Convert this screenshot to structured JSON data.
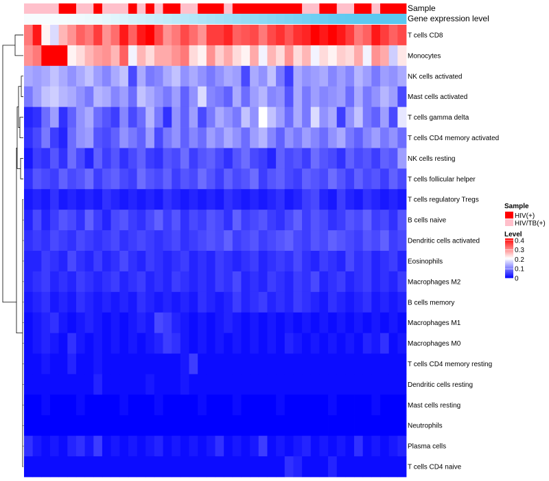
{
  "chart_data": {
    "type": "heatmap",
    "annotation_labels": {
      "sample": "Sample",
      "gene_expression": "Gene expression level"
    },
    "rows": [
      "T cells CD8",
      "Monocytes",
      "NK cells activated",
      "Mast cells activated",
      "T cells gamma delta",
      "T cells CD4 memory activated",
      "NK cells resting",
      "T cells follicular helper",
      "T cells regulatory  Tregs",
      "B cells naive",
      "Dendritic cells activated",
      "Eosinophils",
      "Macrophages M2",
      "B cells memory",
      "Macrophages M1",
      "Macrophages M0",
      "T cells CD4 memory resting",
      "Dendritic cells resting",
      "Mast cells resting",
      "Neutrophils",
      "Plasma cells",
      "T cells CD4 naive"
    ],
    "n_samples": 44,
    "sample_groups": [
      "HIV/TB(+)",
      "HIV/TB(+)",
      "HIV/TB(+)",
      "HIV/TB(+)",
      "HIV(+)",
      "HIV(+)",
      "HIV/TB(+)",
      "HIV/TB(+)",
      "HIV(+)",
      "HIV/TB(+)",
      "HIV/TB(+)",
      "HIV/TB(+)",
      "HIV(+)",
      "HIV/TB(+)",
      "HIV(+)",
      "HIV/TB(+)",
      "HIV(+)",
      "HIV(+)",
      "HIV/TB(+)",
      "HIV/TB(+)",
      "HIV(+)",
      "HIV(+)",
      "HIV(+)",
      "HIV/TB(+)",
      "HIV(+)",
      "HIV(+)",
      "HIV(+)",
      "HIV(+)",
      "HIV(+)",
      "HIV(+)",
      "HIV(+)",
      "HIV(+)",
      "HIV/TB(+)",
      "HIV/TB(+)",
      "HIV(+)",
      "HIV(+)",
      "HIV/TB(+)",
      "HIV/TB(+)",
      "HIV(+)",
      "HIV(+)",
      "HIV/TB(+)",
      "HIV(+)",
      "HIV(+)",
      "HIV(+)"
    ],
    "gene_expression_level": [
      0.05,
      0.05,
      0.05,
      0.05,
      0.06,
      0.07,
      0.09,
      0.11,
      0.13,
      0.16,
      0.19,
      0.22,
      0.25,
      0.28,
      0.31,
      0.34,
      0.37,
      0.4,
      0.43,
      0.46,
      0.49,
      0.52,
      0.55,
      0.58,
      0.61,
      0.64,
      0.67,
      0.7,
      0.73,
      0.76,
      0.79,
      0.82,
      0.85,
      0.88,
      0.91,
      0.94,
      0.96,
      0.97,
      0.98,
      0.99,
      1.0,
      1.0,
      1.0,
      1.0
    ],
    "values": [
      [
        0.32,
        0.4,
        0.22,
        0.18,
        0.27,
        0.3,
        0.34,
        0.32,
        0.37,
        0.3,
        0.33,
        0.4,
        0.34,
        0.4,
        0.42,
        0.36,
        0.3,
        0.32,
        0.36,
        0.33,
        0.3,
        0.37,
        0.37,
        0.39,
        0.34,
        0.35,
        0.36,
        0.32,
        0.36,
        0.38,
        0.35,
        0.38,
        0.39,
        0.42,
        0.4,
        0.42,
        0.4,
        0.37,
        0.32,
        0.34,
        0.4,
        0.37,
        0.34,
        0.36
      ],
      [
        0.3,
        0.32,
        0.42,
        0.42,
        0.42,
        0.22,
        0.24,
        0.27,
        0.29,
        0.3,
        0.27,
        0.34,
        0.2,
        0.27,
        0.24,
        0.28,
        0.28,
        0.3,
        0.32,
        0.24,
        0.22,
        0.3,
        0.25,
        0.28,
        0.24,
        0.22,
        0.28,
        0.2,
        0.27,
        0.24,
        0.3,
        0.24,
        0.27,
        0.2,
        0.24,
        0.22,
        0.25,
        0.24,
        0.28,
        0.2,
        0.3,
        0.28,
        0.17,
        0.23
      ],
      [
        0.14,
        0.13,
        0.14,
        0.16,
        0.14,
        0.12,
        0.14,
        0.16,
        0.13,
        0.11,
        0.14,
        0.16,
        0.06,
        0.14,
        0.1,
        0.11,
        0.14,
        0.16,
        0.12,
        0.14,
        0.12,
        0.1,
        0.12,
        0.14,
        0.13,
        0.06,
        0.14,
        0.12,
        0.16,
        0.1,
        0.05,
        0.14,
        0.12,
        0.13,
        0.14,
        0.11,
        0.13,
        0.11,
        0.15,
        0.13,
        0.1,
        0.13,
        0.12,
        0.14
      ],
      [
        0.1,
        0.13,
        0.16,
        0.17,
        0.15,
        0.14,
        0.12,
        0.1,
        0.15,
        0.14,
        0.11,
        0.13,
        0.09,
        0.16,
        0.14,
        0.12,
        0.1,
        0.13,
        0.08,
        0.12,
        0.18,
        0.11,
        0.1,
        0.08,
        0.14,
        0.09,
        0.13,
        0.15,
        0.11,
        0.12,
        0.07,
        0.14,
        0.1,
        0.13,
        0.11,
        0.12,
        0.13,
        0.09,
        0.14,
        0.1,
        0.12,
        0.15,
        0.13,
        0.06
      ],
      [
        0.03,
        0.04,
        0.09,
        0.13,
        0.04,
        0.08,
        0.12,
        0.14,
        0.09,
        0.07,
        0.05,
        0.11,
        0.06,
        0.09,
        0.15,
        0.1,
        0.04,
        0.12,
        0.08,
        0.13,
        0.06,
        0.1,
        0.14,
        0.12,
        0.1,
        0.16,
        0.12,
        0.21,
        0.16,
        0.13,
        0.09,
        0.14,
        0.1,
        0.18,
        0.12,
        0.14,
        0.05,
        0.12,
        0.16,
        0.1,
        0.08,
        0.13,
        0.06,
        0.19
      ],
      [
        0.04,
        0.06,
        0.1,
        0.05,
        0.03,
        0.09,
        0.12,
        0.13,
        0.07,
        0.06,
        0.08,
        0.12,
        0.1,
        0.08,
        0.13,
        0.06,
        0.1,
        0.12,
        0.08,
        0.11,
        0.09,
        0.13,
        0.11,
        0.14,
        0.12,
        0.09,
        0.13,
        0.15,
        0.11,
        0.08,
        0.12,
        0.1,
        0.13,
        0.11,
        0.09,
        0.12,
        0.14,
        0.1,
        0.08,
        0.11,
        0.13,
        0.1,
        0.12,
        0.09
      ],
      [
        0.02,
        0.05,
        0.04,
        0.07,
        0.04,
        0.09,
        0.06,
        0.03,
        0.08,
        0.05,
        0.07,
        0.04,
        0.06,
        0.08,
        0.05,
        0.04,
        0.07,
        0.06,
        0.09,
        0.05,
        0.07,
        0.08,
        0.06,
        0.04,
        0.07,
        0.09,
        0.06,
        0.05,
        0.03,
        0.08,
        0.06,
        0.07,
        0.05,
        0.09,
        0.07,
        0.06,
        0.04,
        0.08,
        0.06,
        0.07,
        0.05,
        0.08,
        0.07,
        0.13
      ],
      [
        0.04,
        0.07,
        0.06,
        0.05,
        0.08,
        0.06,
        0.07,
        0.09,
        0.05,
        0.07,
        0.08,
        0.06,
        0.05,
        0.09,
        0.07,
        0.06,
        0.08,
        0.05,
        0.07,
        0.06,
        0.09,
        0.07,
        0.05,
        0.08,
        0.06,
        0.07,
        0.09,
        0.05,
        0.07,
        0.08,
        0.06,
        0.05,
        0.08,
        0.07,
        0.06,
        0.09,
        0.07,
        0.05,
        0.08,
        0.06,
        0.07,
        0.05,
        0.08,
        0.06
      ],
      [
        0.02,
        0.03,
        0.02,
        0.04,
        0.02,
        0.03,
        0.02,
        0.03,
        0.02,
        0.04,
        0.03,
        0.02,
        0.03,
        0.02,
        0.03,
        0.02,
        0.04,
        0.03,
        0.02,
        0.03,
        0.02,
        0.03,
        0.02,
        0.04,
        0.03,
        0.02,
        0.03,
        0.02,
        0.03,
        0.04,
        0.02,
        0.03,
        0.05,
        0.06,
        0.03,
        0.02,
        0.05,
        0.03,
        0.02,
        0.04,
        0.03,
        0.02,
        0.03,
        0.02
      ],
      [
        0.03,
        0.06,
        0.03,
        0.05,
        0.07,
        0.06,
        0.04,
        0.08,
        0.05,
        0.03,
        0.06,
        0.07,
        0.05,
        0.04,
        0.06,
        0.08,
        0.05,
        0.07,
        0.04,
        0.06,
        0.05,
        0.07,
        0.06,
        0.04,
        0.08,
        0.05,
        0.06,
        0.07,
        0.05,
        0.04,
        0.06,
        0.08,
        0.05,
        0.07,
        0.06,
        0.04,
        0.05,
        0.07,
        0.06,
        0.08,
        0.05,
        0.06,
        0.04,
        0.07
      ],
      [
        0.04,
        0.05,
        0.04,
        0.06,
        0.05,
        0.04,
        0.06,
        0.05,
        0.04,
        0.05,
        0.06,
        0.04,
        0.05,
        0.06,
        0.05,
        0.04,
        0.05,
        0.06,
        0.04,
        0.05,
        0.06,
        0.07,
        0.06,
        0.08,
        0.05,
        0.06,
        0.07,
        0.05,
        0.06,
        0.07,
        0.08,
        0.06,
        0.05,
        0.07,
        0.06,
        0.08,
        0.07,
        0.06,
        0.05,
        0.07,
        0.06,
        0.08,
        0.05,
        0.06
      ],
      [
        0.03,
        0.03,
        0.05,
        0.04,
        0.03,
        0.06,
        0.04,
        0.03,
        0.05,
        0.03,
        0.04,
        0.06,
        0.04,
        0.03,
        0.05,
        0.04,
        0.03,
        0.04,
        0.05,
        0.03,
        0.04,
        0.03,
        0.05,
        0.04,
        0.03,
        0.04,
        0.05,
        0.03,
        0.04,
        0.05,
        0.04,
        0.06,
        0.04,
        0.03,
        0.05,
        0.04,
        0.03,
        0.06,
        0.04,
        0.05,
        0.03,
        0.04,
        0.05,
        0.03
      ],
      [
        0.03,
        0.04,
        0.05,
        0.03,
        0.04,
        0.03,
        0.05,
        0.04,
        0.03,
        0.04,
        0.05,
        0.03,
        0.04,
        0.05,
        0.03,
        0.04,
        0.03,
        0.05,
        0.04,
        0.03,
        0.04,
        0.03,
        0.05,
        0.04,
        0.06,
        0.03,
        0.04,
        0.03,
        0.05,
        0.04,
        0.03,
        0.05,
        0.04,
        0.06,
        0.03,
        0.04,
        0.05,
        0.03,
        0.04,
        0.05,
        0.03,
        0.04,
        0.03,
        0.05
      ],
      [
        0.02,
        0.03,
        0.04,
        0.02,
        0.03,
        0.02,
        0.04,
        0.03,
        0.02,
        0.03,
        0.02,
        0.03,
        0.02,
        0.04,
        0.03,
        0.02,
        0.03,
        0.02,
        0.03,
        0.02,
        0.04,
        0.03,
        0.02,
        0.03,
        0.05,
        0.03,
        0.04,
        0.05,
        0.03,
        0.04,
        0.03,
        0.05,
        0.04,
        0.03,
        0.02,
        0.04,
        0.03,
        0.02,
        0.03,
        0.04,
        0.02,
        0.03,
        0.02,
        0.03
      ],
      [
        0.01,
        0.02,
        0.03,
        0.04,
        0.02,
        0.01,
        0.02,
        0.03,
        0.02,
        0.01,
        0.02,
        0.01,
        0.02,
        0.03,
        0.02,
        0.06,
        0.05,
        0.03,
        0.02,
        0.01,
        0.02,
        0.01,
        0.02,
        0.03,
        0.02,
        0.01,
        0.02,
        0.01,
        0.02,
        0.01,
        0.02,
        0.01,
        0.02,
        0.01,
        0.02,
        0.01,
        0.02,
        0.01,
        0.02,
        0.01,
        0.02,
        0.01,
        0.02,
        0.01
      ],
      [
        0.01,
        0.02,
        0.03,
        0.02,
        0.01,
        0.04,
        0.02,
        0.01,
        0.02,
        0.01,
        0.02,
        0.01,
        0.02,
        0.01,
        0.02,
        0.03,
        0.05,
        0.04,
        0.02,
        0.01,
        0.02,
        0.01,
        0.02,
        0.01,
        0.02,
        0.01,
        0.02,
        0.01,
        0.02,
        0.01,
        0.03,
        0.02,
        0.01,
        0.02,
        0.01,
        0.02,
        0.01,
        0.02,
        0.01,
        0.03,
        0.02,
        0.04,
        0.01,
        0.02
      ],
      [
        0.01,
        0.01,
        0.02,
        0.01,
        0.01,
        0.03,
        0.01,
        0.01,
        0.02,
        0.01,
        0.01,
        0.01,
        0.01,
        0.01,
        0.01,
        0.01,
        0.01,
        0.01,
        0.02,
        0.05,
        0.01,
        0.01,
        0.01,
        0.01,
        0.01,
        0.01,
        0.01,
        0.01,
        0.01,
        0.01,
        0.01,
        0.01,
        0.01,
        0.01,
        0.01,
        0.01,
        0.01,
        0.01,
        0.01,
        0.01,
        0.01,
        0.01,
        0.01,
        0.01
      ],
      [
        0.01,
        0.01,
        0.01,
        0.01,
        0.01,
        0.01,
        0.01,
        0.01,
        0.03,
        0.01,
        0.01,
        0.01,
        0.01,
        0.01,
        0.02,
        0.01,
        0.01,
        0.01,
        0.02,
        0.01,
        0.01,
        0.01,
        0.01,
        0.01,
        0.01,
        0.01,
        0.01,
        0.01,
        0.01,
        0.01,
        0.01,
        0.01,
        0.01,
        0.01,
        0.01,
        0.01,
        0.01,
        0.01,
        0.01,
        0.01,
        0.01,
        0.01,
        0.01,
        0.01
      ],
      [
        0.0,
        0.0,
        0.01,
        0.0,
        0.0,
        0.0,
        0.01,
        0.0,
        0.0,
        0.0,
        0.0,
        0.01,
        0.0,
        0.0,
        0.0,
        0.01,
        0.0,
        0.0,
        0.0,
        0.0,
        0.01,
        0.0,
        0.0,
        0.0,
        0.01,
        0.0,
        0.0,
        0.0,
        0.0,
        0.01,
        0.0,
        0.0,
        0.0,
        0.0,
        0.0,
        0.01,
        0.0,
        0.0,
        0.0,
        0.0,
        0.01,
        0.0,
        0.0,
        0.0
      ],
      [
        0.0,
        0.0,
        0.0,
        0.0,
        0.0,
        0.0,
        0.0,
        0.0,
        0.0,
        0.0,
        0.0,
        0.0,
        0.0,
        0.0,
        0.0,
        0.0,
        0.0,
        0.0,
        0.0,
        0.0,
        0.0,
        0.0,
        0.0,
        0.0,
        0.0,
        0.0,
        0.0,
        0.0,
        0.0,
        0.0,
        0.0,
        0.0,
        0.0,
        0.0,
        0.0,
        0.0,
        0.0,
        0.0,
        0.0,
        0.0,
        0.0,
        0.0,
        0.0,
        0.0
      ],
      [
        0.04,
        0.02,
        0.01,
        0.02,
        0.01,
        0.03,
        0.04,
        0.02,
        0.05,
        0.01,
        0.02,
        0.01,
        0.02,
        0.01,
        0.02,
        0.03,
        0.01,
        0.02,
        0.01,
        0.02,
        0.01,
        0.02,
        0.04,
        0.01,
        0.02,
        0.01,
        0.02,
        0.05,
        0.01,
        0.02,
        0.01,
        0.02,
        0.03,
        0.01,
        0.02,
        0.01,
        0.02,
        0.01,
        0.04,
        0.01,
        0.02,
        0.01,
        0.02,
        0.03
      ],
      [
        0.01,
        0.01,
        0.01,
        0.01,
        0.01,
        0.01,
        0.01,
        0.01,
        0.01,
        0.01,
        0.01,
        0.01,
        0.01,
        0.01,
        0.01,
        0.01,
        0.01,
        0.01,
        0.01,
        0.01,
        0.01,
        0.01,
        0.01,
        0.01,
        0.01,
        0.01,
        0.01,
        0.01,
        0.01,
        0.01,
        0.04,
        0.03,
        0.01,
        0.01,
        0.01,
        0.03,
        0.01,
        0.01,
        0.01,
        0.01,
        0.01,
        0.01,
        0.01,
        0.01
      ]
    ],
    "legend": {
      "sample_title": "Sample",
      "sample_entries": [
        {
          "label": "HIV(+)",
          "color": "#ff0000"
        },
        {
          "label": "HIV/TB(+)",
          "color": "#ffc0cb"
        }
      ],
      "level_title": "Level",
      "level_ticks": [
        "0.4",
        "0.3",
        "0.2",
        "0.1",
        "0"
      ],
      "level_range": [
        0,
        0.42
      ]
    },
    "colors": {
      "low": "#0000ff",
      "mid": "#ffffff",
      "high": "#ff0000",
      "expr_low": "#ffffff",
      "expr_high": "#5bc8f0"
    }
  }
}
